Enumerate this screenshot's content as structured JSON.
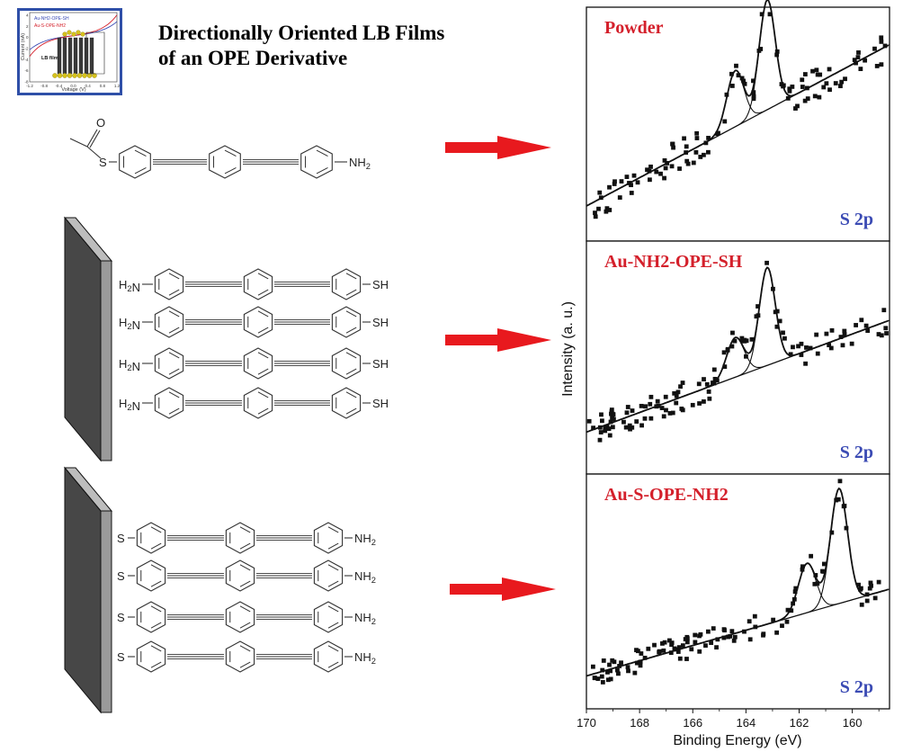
{
  "title": {
    "line1": "Directionally Oriented LB Films",
    "line2": "of an OPE Derivative"
  },
  "colors": {
    "arrow": "#e8191e",
    "panel_label": "#d4202b",
    "s2p_label": "#3b4bb4",
    "electrode_front": "#474747",
    "electrode_side": "#9a9a9a",
    "electrode_top": "#bdbdbd"
  },
  "inset": {
    "legend": [
      "Au-NH2-OPE-SH",
      "Au-S-OPE-NH2"
    ],
    "legend_colors": [
      "#3b4bb4",
      "#d4202b"
    ],
    "ylabel": "Current (nA)",
    "xlabel": "Voltage (V)",
    "xticks": [
      "-1.2",
      "-0.8",
      "-0.4",
      "0.0",
      "0.4",
      "0.8",
      "1.2"
    ],
    "yticks": [
      "4",
      "2",
      "0",
      "-2",
      "-4",
      "-6",
      "-8"
    ],
    "film_label": "LB film"
  },
  "molecules": {
    "powder": {
      "left": "",
      "right": "NH2"
    },
    "film1": {
      "left": "H2N",
      "right": "SH",
      "count": 4
    },
    "film2": {
      "left": "S",
      "right": "NH2",
      "count": 4
    }
  },
  "xps": {
    "panels": [
      {
        "label": "Powder",
        "spec_label": "S 2p"
      },
      {
        "label": "Au-NH2-OPE-SH",
        "spec_label": "S 2p"
      },
      {
        "label": "Au-S-OPE-NH2",
        "spec_label": "S 2p"
      }
    ],
    "ylabel": "Intensity (a. u.)",
    "xlabel": "Binding Energy (eV)",
    "xticks": [
      "170",
      "168",
      "166",
      "164",
      "162",
      "160"
    ]
  },
  "chart_data": [
    {
      "type": "scatter",
      "title": "Powder",
      "xlabel": "Binding Energy (eV)",
      "ylabel": "Intensity (a. u.)",
      "xlim": [
        170,
        158.6
      ],
      "x_reversed": true,
      "annotation": "S 2p",
      "background": {
        "start": 0.15,
        "end": 0.84
      },
      "peaks": [
        {
          "center": 164.4,
          "height": 0.24,
          "width": 0.32
        },
        {
          "center": 163.2,
          "height": 0.47,
          "width": 0.3
        }
      ],
      "noise": 0.07,
      "n_points": 110,
      "seed": 11
    },
    {
      "type": "scatter",
      "title": "Au-NH2-OPE-SH",
      "xlabel": "Binding Energy (eV)",
      "ylabel": "Intensity (a. u.)",
      "xlim": [
        170,
        158.6
      ],
      "x_reversed": true,
      "annotation": "S 2p",
      "background": {
        "start": 0.18,
        "end": 0.66
      },
      "peaks": [
        {
          "center": 164.4,
          "height": 0.17,
          "width": 0.33
        },
        {
          "center": 163.2,
          "height": 0.42,
          "width": 0.3
        }
      ],
      "noise": 0.06,
      "n_points": 120,
      "seed": 23
    },
    {
      "type": "scatter",
      "title": "Au-S-OPE-NH2",
      "xlabel": "Binding Energy (eV)",
      "ylabel": "Intensity (a. u.)",
      "xlim": [
        170,
        158.6
      ],
      "x_reversed": true,
      "annotation": "S 2p",
      "background": {
        "start": 0.14,
        "end": 0.51
      },
      "peaks": [
        {
          "center": 161.7,
          "height": 0.21,
          "width": 0.33
        },
        {
          "center": 160.5,
          "height": 0.49,
          "width": 0.32
        }
      ],
      "noise": 0.05,
      "n_points": 115,
      "seed": 37
    }
  ]
}
